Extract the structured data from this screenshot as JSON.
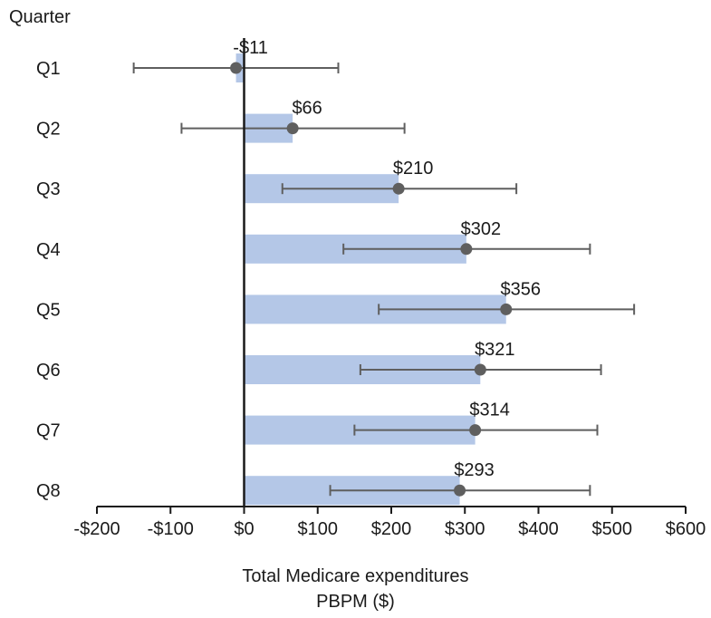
{
  "chart_data": {
    "type": "bar",
    "orientation": "horizontal",
    "ylabel": "Quarter",
    "xlabel_lines": [
      "Total Medicare expenditures",
      "PBPM ($)"
    ],
    "categories": [
      "Q1",
      "Q2",
      "Q3",
      "Q4",
      "Q5",
      "Q6",
      "Q7",
      "Q8"
    ],
    "values": [
      -11,
      66,
      210,
      302,
      356,
      321,
      314,
      293
    ],
    "value_labels": [
      "-$11",
      "$66",
      "$210",
      "$302",
      "$356",
      "$321",
      "$314",
      "$293"
    ],
    "ci_low": [
      -150,
      -85,
      52,
      135,
      183,
      158,
      150,
      117
    ],
    "ci_high": [
      128,
      218,
      370,
      470,
      530,
      485,
      480,
      470
    ],
    "xlim": [
      -200,
      600
    ],
    "xticks": [
      -200,
      -100,
      0,
      100,
      200,
      300,
      400,
      500,
      600
    ],
    "xtick_labels": [
      "-$200",
      "-$100",
      "$0",
      "$100",
      "$200",
      "$300",
      "$400",
      "$500",
      "$600"
    ],
    "grid": false,
    "colors": {
      "bar": "#b4c7e7",
      "marker": "#5f5f5f",
      "errorbar": "#5f5f5f",
      "axis": "#1a1a1a"
    }
  }
}
